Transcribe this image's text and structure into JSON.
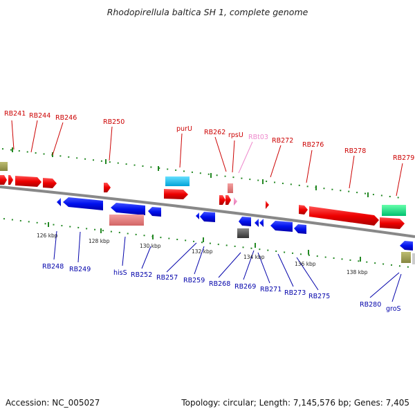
{
  "title": "Rhodopirellula baltica SH 1, complete genome",
  "footer": {
    "accession": "Accession: NC_005027",
    "summary": "Topology: circular; Length: 7,145,576 bp; Genes: 7,405"
  },
  "colors": {
    "top_label": "#cc0000",
    "rna_label": "#ee88cc",
    "bottom_label": "#0000aa",
    "tick": "#228822",
    "backbone": "#888888"
  },
  "top_labels": [
    "RB241",
    "RB244",
    "RB246",
    "RB250",
    "purU",
    "RB262",
    "rpsU",
    "RBt03",
    "RB272",
    "RB276",
    "RB278",
    "RB279"
  ],
  "bottom_labels": [
    "RB248",
    "RB249",
    "hisS",
    "RB252",
    "RB257",
    "RB259",
    "RB268",
    "RB269",
    "RB271",
    "RB273",
    "RB275",
    "RB280",
    "groS"
  ],
  "scale_labels": [
    "126 kbp",
    "128 kbp",
    "130 kbp",
    "132 kbp",
    "134 kbp",
    "136 kbp",
    "138 kbp"
  ]
}
